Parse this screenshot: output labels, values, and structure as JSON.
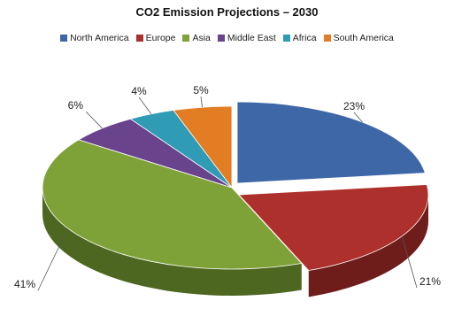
{
  "chart_data": {
    "type": "pie",
    "title": "CO2 Emission Projections – 2030",
    "legend_position": "top",
    "categories": [
      "North America",
      "Europe",
      "Asia",
      "Middle East",
      "Africa",
      "South America"
    ],
    "values": [
      23,
      21,
      41,
      6,
      4,
      5
    ],
    "labels": [
      "23%",
      "21%",
      "41%",
      "6%",
      "4%",
      "5%"
    ],
    "colors": [
      "#3D67A6",
      "#AE302C",
      "#7FA238",
      "#69438C",
      "#2F9BB5",
      "#E37D23"
    ],
    "side_colors": [
      "#243E66",
      "#6E1D1A",
      "#4D6620",
      "#3F2856",
      "#1C5F70",
      "#8F4E15"
    ],
    "exploded": [
      "North America",
      "Europe"
    ]
  }
}
